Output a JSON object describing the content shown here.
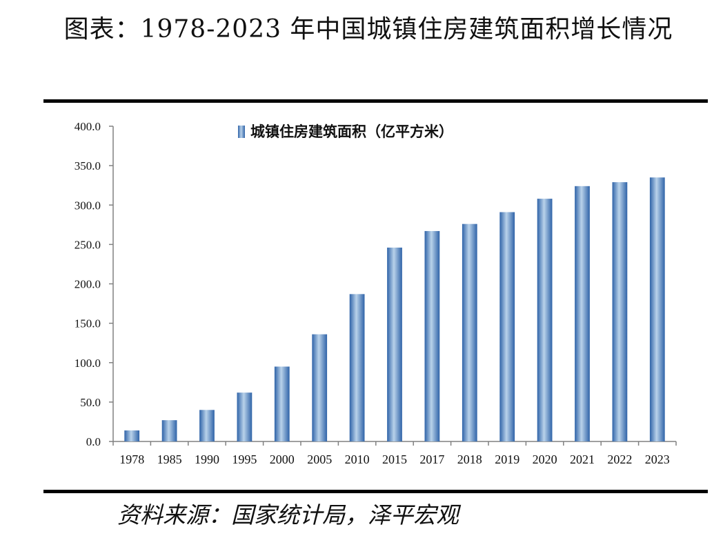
{
  "title": "图表：1978-2023 年中国城镇住房建筑面积增长情况",
  "source": "资料来源：国家统计局，泽平宏观",
  "colors": {
    "bar_dark": "#2f63a8",
    "bar_light": "#b9d2ea",
    "axis": "#808080",
    "rule": "#000000"
  },
  "chart_data": {
    "type": "bar",
    "categories": [
      "1978",
      "1985",
      "1990",
      "1995",
      "2000",
      "2005",
      "2010",
      "2015",
      "2017",
      "2018",
      "2019",
      "2020",
      "2021",
      "2022",
      "2023"
    ],
    "series": [
      {
        "name": "城镇住房建筑面积（亿平方米）",
        "values": [
          14.0,
          27.0,
          40.0,
          62.0,
          95.0,
          136.0,
          187.0,
          246.0,
          267.0,
          276.0,
          291.0,
          308.0,
          324.0,
          329.0,
          335.0
        ]
      }
    ],
    "ylim": [
      0,
      400
    ],
    "yticks": [
      "0.0",
      "50.0",
      "100.0",
      "150.0",
      "200.0",
      "250.0",
      "300.0",
      "350.0",
      "400.0"
    ],
    "grid": false,
    "legend": "top-center",
    "xlabel": "",
    "ylabel": ""
  }
}
